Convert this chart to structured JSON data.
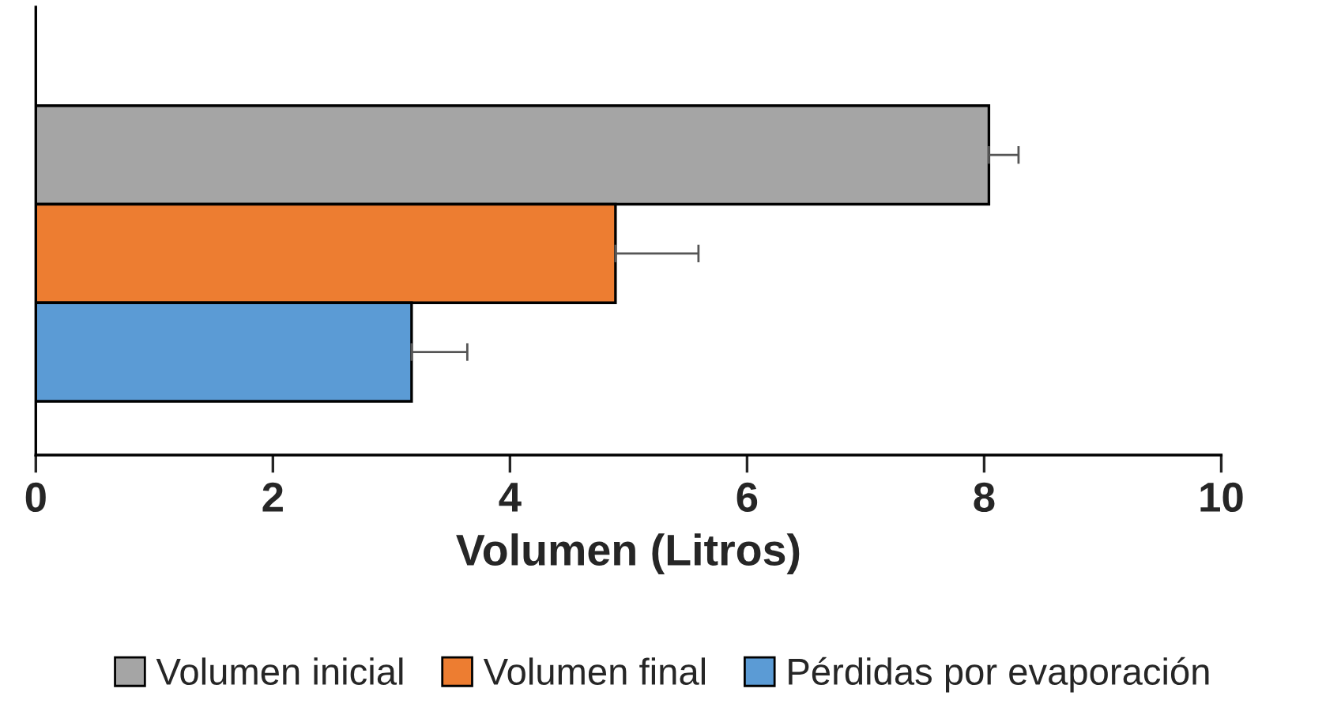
{
  "chart_data": {
    "type": "bar",
    "orientation": "horizontal",
    "xlabel": "Volumen (Litros)",
    "categories": [
      null
    ],
    "series": [
      {
        "name": "Volumen inicial",
        "color": "#a5a5a5",
        "values": [
          8.04
        ],
        "errors": [
          [
            8.04,
            8.29
          ]
        ]
      },
      {
        "name": "Volumen final",
        "color": "#ed7d31",
        "values": [
          4.89
        ],
        "errors": [
          [
            4.89,
            5.59
          ]
        ]
      },
      {
        "name": "Pérdidas por evaporación",
        "color": "#5b9bd5",
        "values": [
          3.17
        ],
        "errors": [
          [
            3.17,
            3.64
          ]
        ]
      }
    ],
    "xlim": [
      0,
      10
    ],
    "xticks": [
      0,
      2,
      4,
      6,
      8,
      10
    ],
    "tick_labels": "x",
    "grid": false,
    "legend": "bottom"
  }
}
